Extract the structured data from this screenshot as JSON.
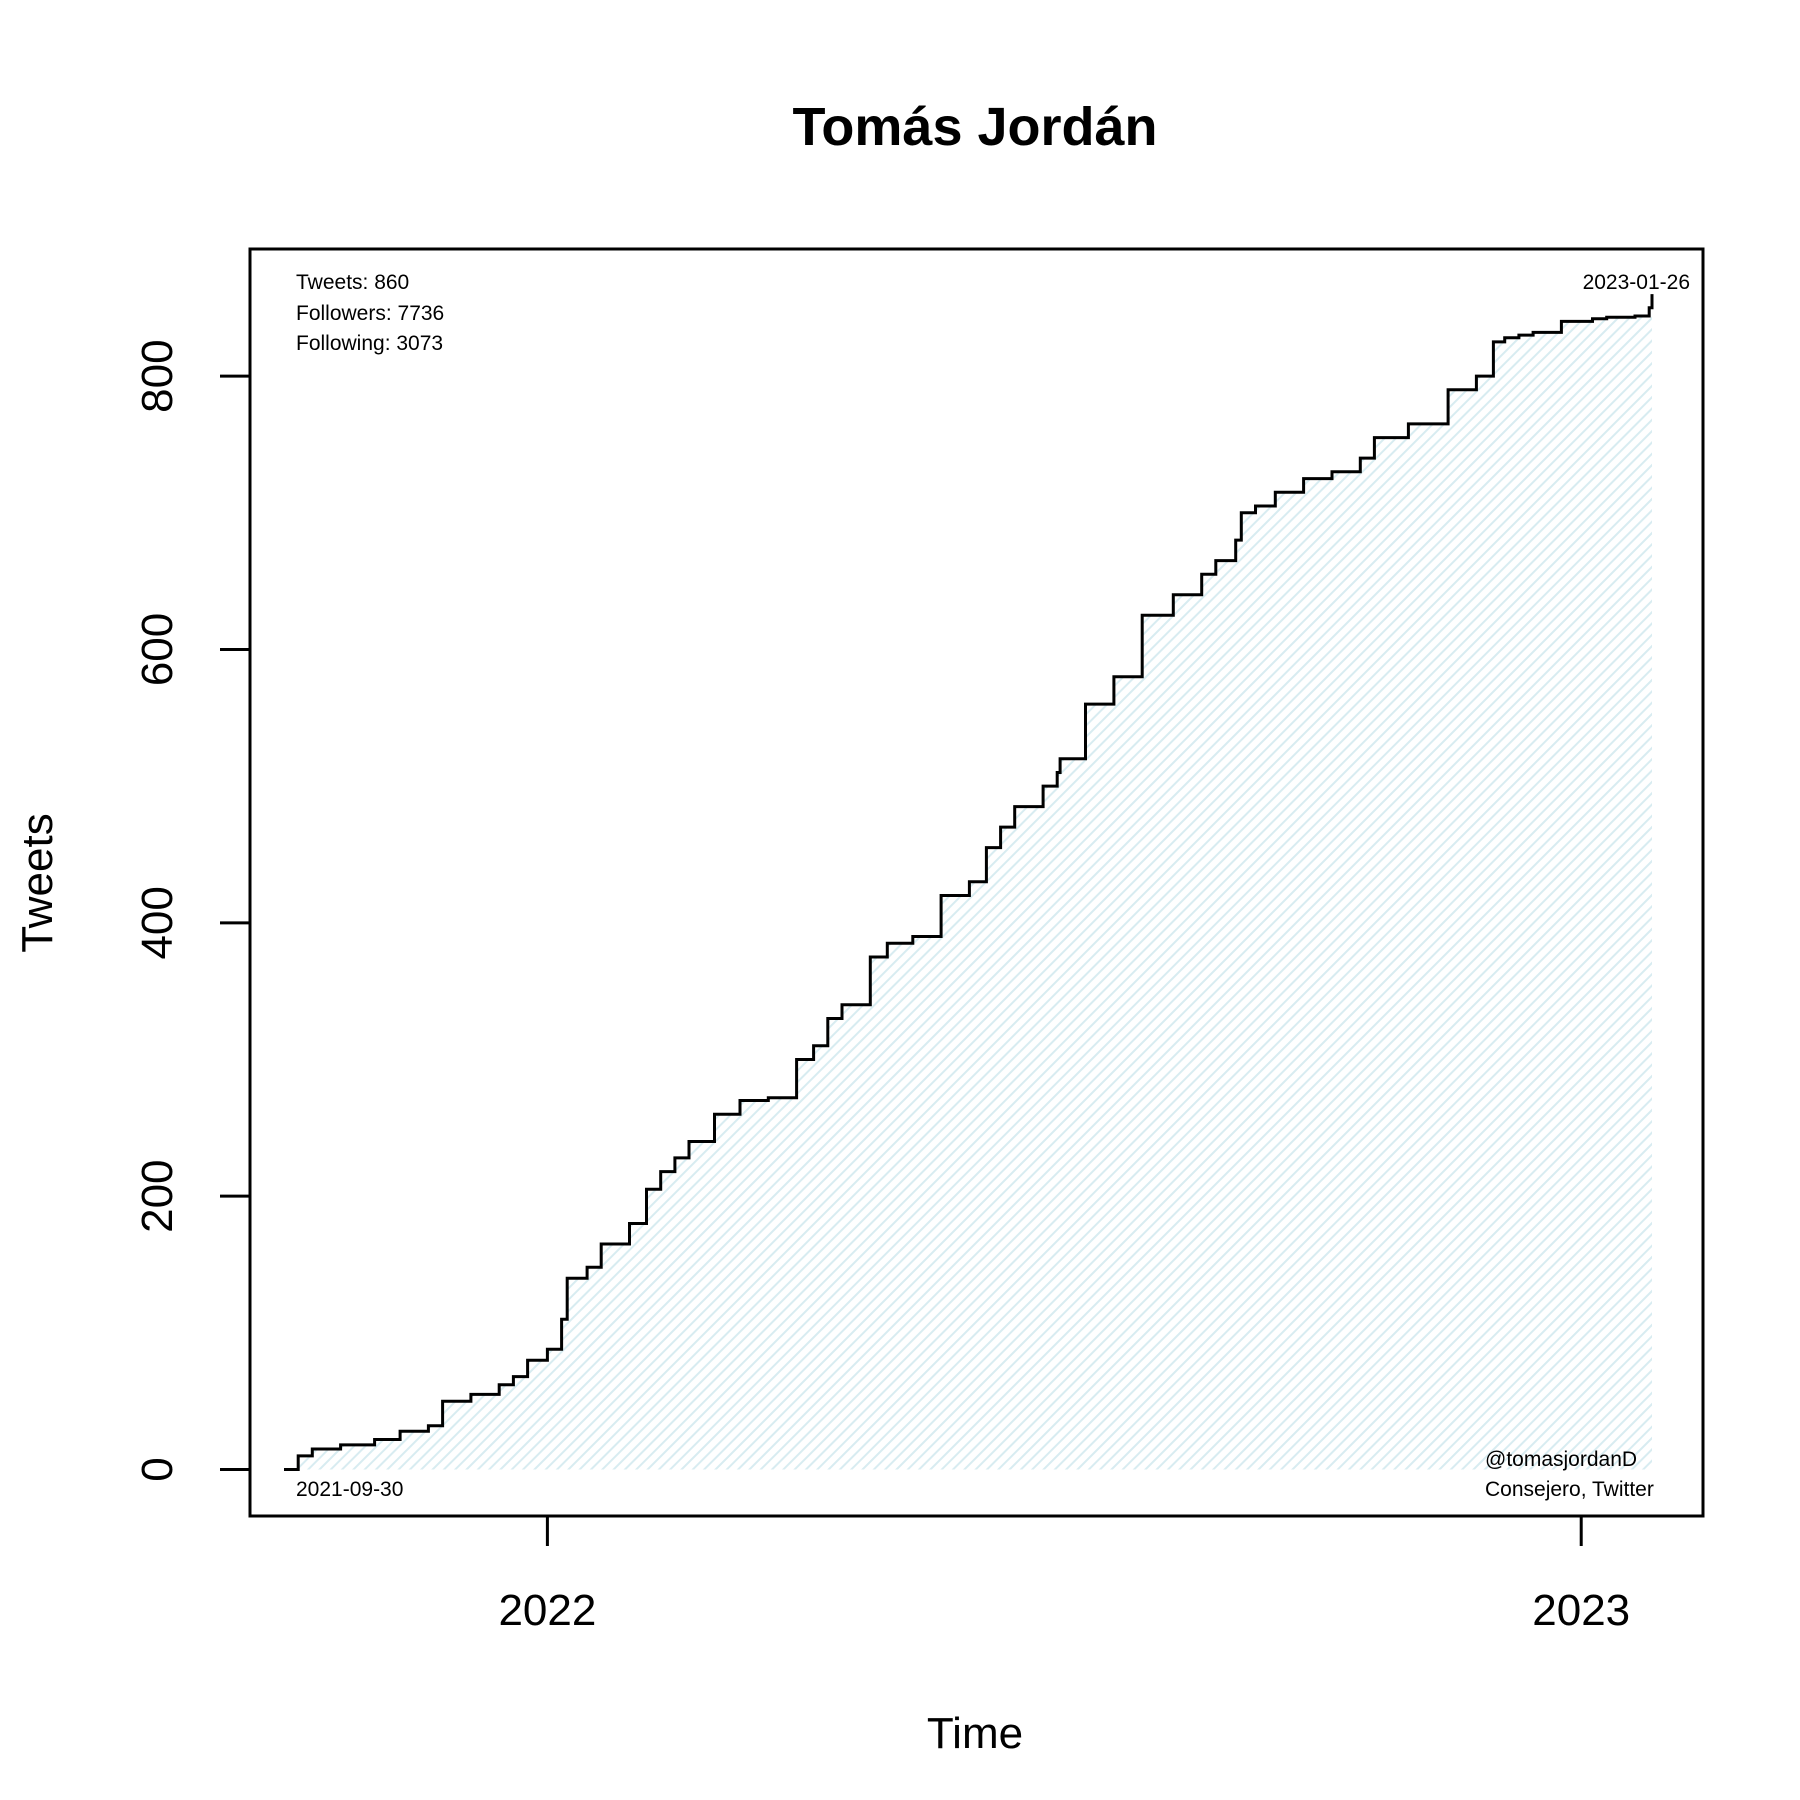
{
  "chart_data": {
    "type": "line",
    "title": "Tomás Jordán",
    "xlabel": "Time",
    "ylabel": "Tweets",
    "ylim": [
      -34,
      893
    ],
    "xlim": [
      "2021-09-18",
      "2023-02-13"
    ],
    "x_ticks": [
      {
        "date": "2022-01-01",
        "label": "2022"
      },
      {
        "date": "2023-01-01",
        "label": "2023"
      }
    ],
    "y_ticks": [
      0,
      200,
      400,
      600,
      800
    ],
    "grid": false,
    "fill_color": "#e8f3f6",
    "line_color": "#000000",
    "series": [
      {
        "x": [
          "2021-09-30",
          "2021-10-05",
          "2021-10-10",
          "2021-10-20",
          "2021-11-01",
          "2021-11-10",
          "2021-11-20",
          "2021-11-25",
          "2021-12-05",
          "2021-12-15",
          "2021-12-20",
          "2021-12-25",
          "2022-01-01",
          "2022-01-06",
          "2022-01-08",
          "2022-01-15",
          "2022-01-20",
          "2022-01-30",
          "2022-02-05",
          "2022-02-10",
          "2022-02-15",
          "2022-02-20",
          "2022-03-01",
          "2022-03-10",
          "2022-03-20",
          "2022-03-30",
          "2022-04-05",
          "2022-04-10",
          "2022-04-15",
          "2022-04-25",
          "2022-05-01",
          "2022-05-10",
          "2022-05-20",
          "2022-05-30",
          "2022-06-05",
          "2022-06-10",
          "2022-06-15",
          "2022-06-25",
          "2022-06-30",
          "2022-07-01",
          "2022-07-10",
          "2022-07-20",
          "2022-07-30",
          "2022-08-10",
          "2022-08-20",
          "2022-08-25",
          "2022-09-01",
          "2022-09-03",
          "2022-09-08",
          "2022-09-15",
          "2022-09-25",
          "2022-10-05",
          "2022-10-15",
          "2022-10-20",
          "2022-11-01",
          "2022-11-15",
          "2022-11-25",
          "2022-12-01",
          "2022-12-05",
          "2022-12-10",
          "2022-12-15",
          "2022-12-25",
          "2023-01-05",
          "2023-01-10",
          "2023-01-20",
          "2023-01-25",
          "2023-01-26"
        ],
        "y": [
          0,
          10,
          15,
          18,
          22,
          28,
          32,
          50,
          55,
          62,
          68,
          80,
          88,
          110,
          140,
          148,
          165,
          180,
          205,
          218,
          228,
          240,
          260,
          270,
          272,
          300,
          310,
          330,
          340,
          375,
          385,
          390,
          420,
          430,
          455,
          470,
          485,
          500,
          510,
          520,
          560,
          580,
          625,
          640,
          655,
          665,
          680,
          700,
          705,
          715,
          725,
          730,
          740,
          755,
          765,
          790,
          800,
          825,
          828,
          830,
          832,
          840,
          842,
          843,
          844,
          850,
          860
        ]
      }
    ],
    "annotations": {
      "stats": [
        "Tweets: 860",
        "Followers: 7736",
        "Following: 3073"
      ],
      "start_date": "2021-09-30",
      "end_date": "2023-01-26",
      "handle": "@tomasjordanD",
      "description": "Consejero, Twitter"
    }
  }
}
